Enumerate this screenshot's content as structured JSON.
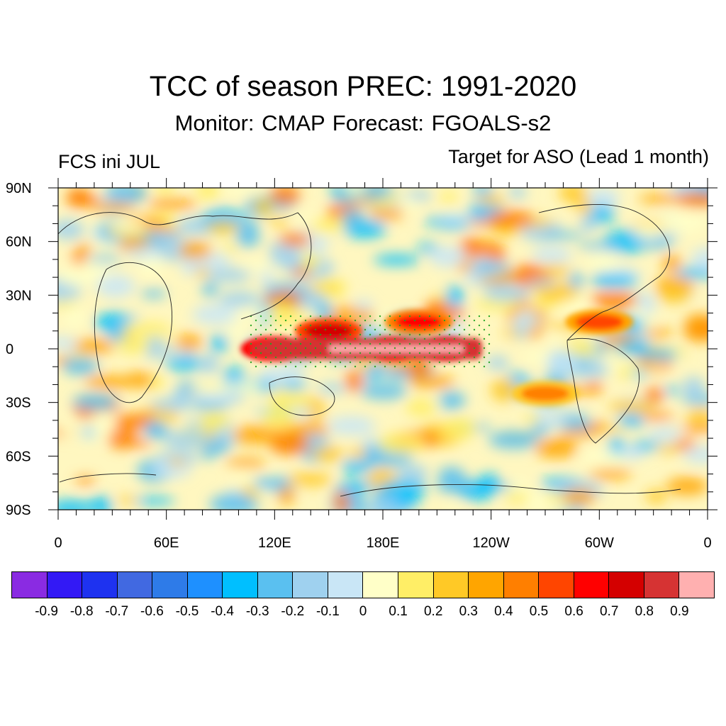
{
  "title": "TCC of season PREC: 1991-2020",
  "subtitle": "Monitor: CMAP   Forecast: FGOALS-s2",
  "left_label": "FCS ini JUL",
  "right_label": "Target for ASO (Lead 1 month)",
  "lat_ticks": [
    "90N",
    "60N",
    "30N",
    "0",
    "30S",
    "60S",
    "90S"
  ],
  "lon_ticks": [
    "0",
    "60E",
    "120E",
    "180E",
    "120W",
    "60W",
    "0"
  ],
  "colorbar": {
    "colors": [
      "#8a2be2",
      "#3319f5",
      "#1e32f0",
      "#4169e1",
      "#2e7be8",
      "#1e90ff",
      "#00bfff",
      "#5ac0f0",
      "#9fd1ef",
      "#c9e6f6",
      "#ffffc8",
      "#ffee66",
      "#ffc926",
      "#ffa500",
      "#ff7f00",
      "#ff4500",
      "#ff0000",
      "#d40000",
      "#d63333",
      "#ffb0b0"
    ],
    "labels": [
      "-0.9",
      "-0.8",
      "-0.7",
      "-0.6",
      "-0.5",
      "-0.4",
      "-0.3",
      "-0.2",
      "-0.1",
      "0",
      "0.1",
      "0.2",
      "0.3",
      "0.4",
      "0.5",
      "0.6",
      "0.7",
      "0.8",
      "0.9"
    ]
  },
  "map": {
    "lon_range": [
      0,
      360
    ],
    "lat_range": [
      -90,
      90
    ],
    "high_correlation_zones": [
      {
        "lon": 120,
        "lat": 0,
        "value": 0.8
      },
      {
        "lon": 150,
        "lat": 10,
        "value": 0.75
      },
      {
        "lon": 185,
        "lat": 0,
        "value": 0.85
      },
      {
        "lon": 215,
        "lat": 0,
        "value": 0.8
      },
      {
        "lon": 200,
        "lat": 15,
        "value": 0.6
      },
      {
        "lon": 300,
        "lat": 15,
        "value": 0.5
      },
      {
        "lon": 270,
        "lat": -25,
        "value": 0.4
      }
    ]
  }
}
